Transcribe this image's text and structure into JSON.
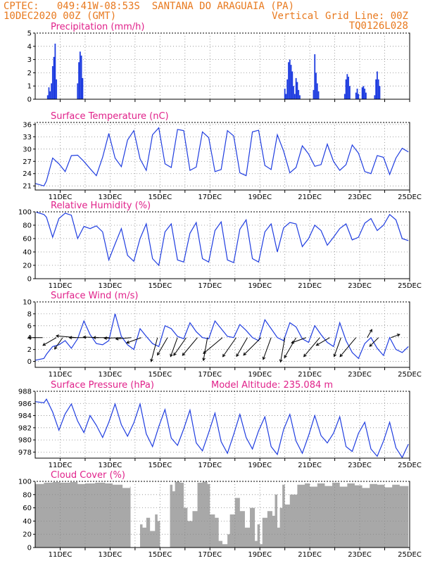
{
  "header": {
    "line1_left": "CPTEC:   049:41W-08:53S  SANTANA DO ARAGUAIA (PA)",
    "line2_left": "10DEC2020 00Z (GMT)",
    "line2_right": "Vertical Grid Line: 00Z",
    "line3_right": "TQ0126L028"
  },
  "colors": {
    "line": "#1f3de0",
    "bar": "#1f3de0",
    "cloud": "#a8a8a8",
    "title": "#e0218a",
    "header": "#e8791e",
    "arrow": "#000000"
  },
  "x_ticks": [
    "11DEC",
    "13DEC",
    "15DEC",
    "17DEC",
    "19DEC",
    "21DEC",
    "23DEC",
    "25DEC"
  ],
  "chart_data": [
    {
      "type": "bar",
      "title": "Precipitation (mm/h)",
      "x_units": "days since 10DEC2020 00Z",
      "xlim": [
        0,
        15
      ],
      "ylim": [
        0,
        5
      ],
      "yticks": [
        0,
        1,
        2,
        3,
        4,
        5
      ],
      "grid": true,
      "x": [
        0.5,
        0.55,
        0.6,
        0.65,
        0.7,
        0.75,
        0.8,
        0.85,
        1.7,
        1.75,
        1.8,
        1.85,
        1.9,
        10.0,
        10.05,
        10.1,
        10.15,
        10.2,
        10.25,
        10.3,
        10.35,
        10.4,
        10.45,
        10.5,
        10.55,
        10.6,
        11.15,
        11.2,
        11.25,
        11.3,
        11.35,
        12.4,
        12.45,
        12.5,
        12.55,
        12.6,
        12.85,
        12.9,
        12.95,
        13.1,
        13.15,
        13.2,
        13.25,
        13.6,
        13.65,
        13.7,
        13.75,
        13.8
      ],
      "values": [
        0.3,
        0.9,
        0.6,
        1.2,
        2.5,
        3.2,
        4.2,
        1.5,
        1.2,
        2.8,
        3.6,
        3.3,
        1.6,
        0.8,
        0.4,
        1.5,
        2.8,
        3.0,
        2.6,
        2.1,
        1.0,
        0.4,
        1.6,
        1.3,
        0.7,
        0.3,
        0.7,
        3.4,
        2.0,
        1.2,
        0.6,
        0.4,
        1.5,
        1.9,
        1.7,
        1.0,
        0.5,
        0.8,
        0.4,
        0.9,
        1.0,
        0.8,
        0.5,
        0.3,
        1.5,
        2.1,
        1.5,
        1.0
      ]
    },
    {
      "type": "line",
      "title": "Surface Temperature (nC)",
      "x_units": "days since 10DEC2020 00Z",
      "xlim": [
        0,
        15
      ],
      "ylim": [
        20,
        36.5
      ],
      "yticks": [
        21,
        24,
        27,
        30,
        33,
        36
      ],
      "grid": true,
      "x": [
        0.0,
        0.35,
        0.45,
        0.7,
        0.95,
        1.2,
        1.45,
        1.7,
        1.95,
        2.2,
        2.45,
        2.7,
        2.95,
        3.2,
        3.45,
        3.7,
        3.95,
        4.2,
        4.45,
        4.7,
        4.95,
        5.2,
        5.45,
        5.7,
        5.95,
        6.2,
        6.45,
        6.7,
        6.95,
        7.2,
        7.45,
        7.7,
        7.95,
        8.2,
        8.45,
        8.7,
        8.95,
        9.2,
        9.45,
        9.7,
        9.95,
        10.2,
        10.45,
        10.7,
        10.95,
        11.2,
        11.45,
        11.7,
        11.95,
        12.2,
        12.45,
        12.7,
        12.95,
        13.2,
        13.45,
        13.7,
        13.95,
        14.2,
        14.45,
        14.7,
        14.95
      ],
      "values": [
        21.6,
        21.0,
        22.2,
        27.8,
        26.4,
        24.5,
        28.4,
        28.5,
        27.0,
        25.2,
        23.5,
        28.0,
        33.8,
        27.8,
        25.7,
        32.2,
        34.5,
        27.6,
        24.8,
        33.5,
        35.2,
        26.4,
        25.5,
        34.8,
        34.5,
        24.8,
        25.6,
        34.2,
        32.8,
        24.5,
        25.0,
        34.5,
        33.2,
        24.2,
        23.5,
        34.2,
        34.6,
        26.0,
        25.0,
        33.5,
        29.5,
        24.2,
        25.5,
        30.8,
        28.8,
        25.8,
        26.2,
        31.2,
        27.0,
        24.8,
        26.2,
        31.0,
        29.0,
        24.5,
        24.0,
        28.4,
        28.0,
        23.8,
        27.8,
        30.2,
        29.3
      ]
    },
    {
      "type": "line",
      "title": "Relative Humidity (%)",
      "x_units": "days since 10DEC2020 00Z",
      "xlim": [
        0,
        15
      ],
      "ylim": [
        0,
        100
      ],
      "yticks": [
        0,
        20,
        40,
        60,
        80,
        100
      ],
      "grid": true,
      "x": [
        0.0,
        0.35,
        0.45,
        0.7,
        0.95,
        1.2,
        1.45,
        1.7,
        1.95,
        2.2,
        2.45,
        2.7,
        2.95,
        3.2,
        3.45,
        3.7,
        3.95,
        4.2,
        4.45,
        4.7,
        4.95,
        5.2,
        5.45,
        5.7,
        5.95,
        6.2,
        6.45,
        6.7,
        6.95,
        7.2,
        7.45,
        7.7,
        7.95,
        8.2,
        8.45,
        8.7,
        8.95,
        9.2,
        9.45,
        9.7,
        9.95,
        10.2,
        10.45,
        10.7,
        10.95,
        11.2,
        11.45,
        11.7,
        11.95,
        12.2,
        12.45,
        12.7,
        12.95,
        13.2,
        13.45,
        13.7,
        13.95,
        14.2,
        14.45,
        14.7,
        14.95
      ],
      "values": [
        100,
        96,
        92,
        62,
        90,
        98,
        95,
        60,
        78,
        75,
        79,
        70,
        28,
        52,
        75,
        35,
        26,
        60,
        82,
        30,
        20,
        70,
        82,
        28,
        25,
        68,
        84,
        30,
        25,
        72,
        85,
        28,
        24,
        74,
        88,
        30,
        25,
        70,
        82,
        40,
        76,
        84,
        82,
        48,
        60,
        80,
        72,
        50,
        62,
        75,
        82,
        58,
        62,
        83,
        90,
        72,
        80,
        96,
        88,
        60,
        57
      ]
    },
    {
      "type": "line",
      "title": "Surface Wind (m/s)",
      "x_units": "days since 10DEC2020 00Z",
      "xlim": [
        0,
        15
      ],
      "ylim": [
        -1,
        10
      ],
      "yticks": [
        0,
        2,
        4,
        6,
        8,
        10
      ],
      "grid": true,
      "x": [
        0.0,
        0.35,
        0.45,
        0.7,
        0.95,
        1.2,
        1.45,
        1.7,
        1.95,
        2.2,
        2.45,
        2.7,
        2.95,
        3.2,
        3.45,
        3.7,
        3.95,
        4.2,
        4.45,
        4.7,
        4.95,
        5.2,
        5.45,
        5.7,
        5.95,
        6.2,
        6.45,
        6.7,
        6.95,
        7.2,
        7.45,
        7.7,
        7.95,
        8.2,
        8.45,
        8.7,
        8.95,
        9.2,
        9.45,
        9.7,
        9.95,
        10.2,
        10.45,
        10.7,
        10.95,
        11.2,
        11.45,
        11.7,
        11.95,
        12.2,
        12.45,
        12.7,
        12.95,
        13.2,
        13.45,
        13.7,
        13.95,
        14.2,
        14.45,
        14.7,
        14.95
      ],
      "values": [
        0.2,
        0.5,
        1.2,
        2.5,
        2.8,
        3.5,
        2.2,
        3.8,
        6.8,
        4.5,
        3.0,
        2.8,
        3.5,
        8.0,
        4.2,
        2.8,
        2.0,
        5.5,
        4.2,
        3.0,
        2.5,
        6.0,
        5.5,
        4.2,
        3.8,
        6.5,
        5.0,
        4.0,
        3.8,
        6.8,
        5.5,
        4.2,
        4.0,
        6.2,
        5.2,
        4.0,
        3.5,
        7.0,
        5.5,
        4.0,
        3.5,
        6.5,
        5.8,
        3.8,
        3.2,
        6.0,
        4.5,
        3.2,
        2.5,
        6.5,
        3.5,
        1.5,
        0.5,
        3.0,
        4.0,
        2.2,
        1.0,
        4.0,
        2.0,
        1.5,
        2.5
      ]
    },
    {
      "type": "line",
      "title": "Surface Pressure (hPa)",
      "annotation": "Model Altitude: 235.084 m",
      "x_units": "days since 10DEC2020 00Z",
      "xlim": [
        0,
        15
      ],
      "ylim": [
        977,
        988
      ],
      "yticks": [
        978,
        980,
        982,
        984,
        986,
        988
      ],
      "grid": true,
      "x": [
        0.0,
        0.35,
        0.45,
        0.7,
        0.95,
        1.2,
        1.45,
        1.7,
        1.95,
        2.2,
        2.45,
        2.7,
        2.95,
        3.2,
        3.45,
        3.7,
        3.95,
        4.2,
        4.45,
        4.7,
        4.95,
        5.2,
        5.45,
        5.7,
        5.95,
        6.2,
        6.45,
        6.7,
        6.95,
        7.2,
        7.45,
        7.7,
        7.95,
        8.2,
        8.45,
        8.7,
        8.95,
        9.2,
        9.45,
        9.7,
        9.95,
        10.2,
        10.45,
        10.7,
        10.95,
        11.2,
        11.45,
        11.7,
        11.95,
        12.2,
        12.45,
        12.7,
        12.95,
        13.2,
        13.45,
        13.7,
        13.95,
        14.2,
        14.45,
        14.7,
        14.95
      ],
      "values": [
        986.3,
        986.1,
        986.7,
        984.6,
        981.6,
        984.3,
        985.9,
        983.1,
        981.2,
        984.0,
        982.4,
        980.4,
        982.9,
        985.9,
        982.5,
        980.6,
        982.8,
        985.9,
        981.0,
        978.9,
        982.2,
        985.0,
        980.3,
        979.1,
        981.8,
        984.9,
        979.5,
        978.2,
        981.2,
        984.4,
        979.7,
        977.8,
        980.9,
        984.2,
        980.4,
        978.5,
        981.5,
        983.8,
        978.9,
        977.6,
        981.7,
        984.2,
        979.8,
        977.8,
        980.7,
        984.0,
        980.7,
        979.5,
        981.1,
        983.8,
        978.9,
        978.1,
        981.1,
        982.9,
        978.5,
        977.3,
        979.8,
        982.9,
        978.7,
        977.1,
        979.3
      ]
    },
    {
      "type": "area",
      "title": "Cloud Cover (%)",
      "x_units": "days since 10DEC2020 00Z",
      "xlim": [
        0,
        15
      ],
      "ylim": [
        0,
        100
      ],
      "yticks": [
        0,
        20,
        40,
        60,
        80,
        100
      ],
      "grid": true,
      "x": [
        0.0,
        0.35,
        0.7,
        1.0,
        1.4,
        1.7,
        2.0,
        2.4,
        2.8,
        3.1,
        3.5,
        3.8,
        3.82,
        4.0,
        4.2,
        4.3,
        4.45,
        4.6,
        4.8,
        4.9,
        5.0,
        5.3,
        5.4,
        5.5,
        5.6,
        5.8,
        5.95,
        6.1,
        6.3,
        6.5,
        6.7,
        6.9,
        7.0,
        7.2,
        7.35,
        7.5,
        7.7,
        7.8,
        8.0,
        8.2,
        8.4,
        8.6,
        8.8,
        8.9,
        9.0,
        9.1,
        9.3,
        9.5,
        9.6,
        9.7,
        9.8,
        9.9,
        10.0,
        10.2,
        10.5,
        10.8,
        11.0,
        11.3,
        11.6,
        11.9,
        12.2,
        12.5,
        12.8,
        13.1,
        13.4,
        13.7,
        14.0,
        14.3,
        14.6,
        14.95
      ],
      "values": [
        96,
        98,
        99,
        98,
        99,
        96,
        97,
        98,
        97,
        95,
        90,
        92,
        0,
        0,
        35,
        30,
        45,
        25,
        50,
        40,
        0,
        0,
        95,
        85,
        100,
        98,
        60,
        40,
        55,
        98,
        100,
        96,
        50,
        45,
        10,
        5,
        20,
        50,
        75,
        55,
        30,
        60,
        10,
        35,
        5,
        45,
        55,
        48,
        80,
        30,
        60,
        95,
        65,
        80,
        95,
        97,
        92,
        97,
        93,
        98,
        92,
        97,
        94,
        90,
        96,
        95,
        91,
        95,
        93,
        97
      ]
    }
  ],
  "wind_arrows_note": "wind direction arrows along Surface Wind panel",
  "wind_arrows": {
    "x": [
      0.3,
      0.85,
      1.1,
      1.65,
      2.05,
      2.55,
      2.95,
      3.45,
      3.85,
      4.25,
      4.9,
      5.3,
      5.7,
      6.05,
      6.5,
      6.9,
      7.5,
      8.05,
      8.5,
      9.05,
      9.45,
      10.0,
      10.45,
      10.85,
      11.4,
      11.8,
      12.25,
      12.85,
      13.3,
      13.75,
      14.25
    ],
    "angle_deg": [
      180,
      210,
      235,
      175,
      180,
      178,
      180,
      182,
      185,
      200,
      255,
      240,
      250,
      235,
      230,
      260,
      220,
      235,
      240,
      225,
      250,
      260,
      240,
      200,
      230,
      210,
      250,
      230,
      60,
      225,
      20
    ],
    "len": [
      0.9,
      1.0,
      0.9,
      1.3,
      1.1,
      1.0,
      1.0,
      1.1,
      1.0,
      1.0,
      1.6,
      1.3,
      1.3,
      1.4,
      1.5,
      1.5,
      1.6,
      1.5,
      1.4,
      1.6,
      1.5,
      1.6,
      1.5,
      1.0,
      1.6,
      1.0,
      1.3,
      1.6,
      0.6,
      0.8,
      0.6
    ]
  }
}
